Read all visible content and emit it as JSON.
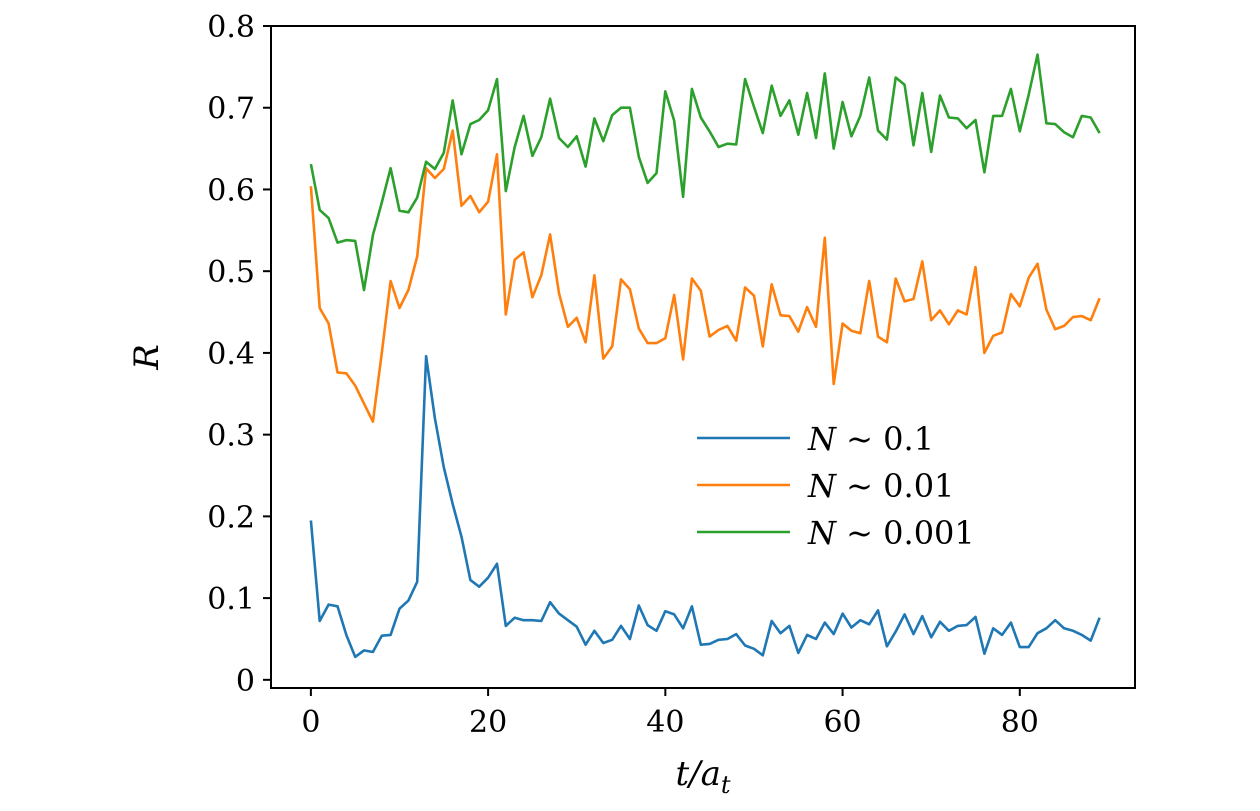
{
  "chart_data": {
    "type": "line",
    "title": "",
    "xlabel": "t/a_t",
    "ylabel": "R",
    "xlim": [
      -4.5,
      93
    ],
    "ylim": [
      -0.01,
      0.8
    ],
    "xticks": [
      0,
      20,
      40,
      60,
      80
    ],
    "yticks": [
      0,
      0.1,
      0.2,
      0.3,
      0.4,
      0.5,
      0.6,
      0.7,
      0.8
    ],
    "ytick_labels": [
      "0",
      "0.1",
      "0.2",
      "0.3",
      "0.4",
      "0.5",
      "0.6",
      "0.7",
      "0.8"
    ],
    "xtick_labels": [
      "0",
      "20",
      "40",
      "60",
      "80"
    ],
    "grid": false,
    "legend_position": "center-right",
    "x": [
      0,
      1,
      2,
      3,
      4,
      5,
      6,
      7,
      8,
      9,
      10,
      11,
      12,
      13,
      14,
      15,
      16,
      17,
      18,
      19,
      20,
      21,
      22,
      23,
      24,
      25,
      26,
      27,
      28,
      29,
      30,
      31,
      32,
      33,
      34,
      35,
      36,
      37,
      38,
      39,
      40,
      41,
      42,
      43,
      44,
      45,
      46,
      47,
      48,
      49,
      50,
      51,
      52,
      53,
      54,
      55,
      56,
      57,
      58,
      59,
      60,
      61,
      62,
      63,
      64,
      65,
      66,
      67,
      68,
      69,
      70,
      71,
      72,
      73,
      74,
      75,
      76,
      77,
      78,
      79,
      80,
      81,
      82,
      83,
      84,
      85,
      86,
      87,
      88,
      89
    ],
    "series": [
      {
        "name": "N ~ 0.1",
        "color": "#1f77b4",
        "values": [
          0.195,
          0.072,
          0.092,
          0.09,
          0.055,
          0.028,
          0.036,
          0.034,
          0.054,
          0.055,
          0.087,
          0.097,
          0.12,
          0.396,
          0.32,
          0.26,
          0.215,
          0.175,
          0.122,
          0.114,
          0.125,
          0.142,
          0.066,
          0.076,
          0.073,
          0.073,
          0.072,
          0.095,
          0.081,
          0.073,
          0.065,
          0.043,
          0.06,
          0.045,
          0.049,
          0.066,
          0.05,
          0.091,
          0.067,
          0.06,
          0.084,
          0.08,
          0.063,
          0.09,
          0.043,
          0.044,
          0.049,
          0.05,
          0.056,
          0.042,
          0.038,
          0.03,
          0.072,
          0.057,
          0.066,
          0.033,
          0.055,
          0.05,
          0.07,
          0.056,
          0.081,
          0.064,
          0.073,
          0.068,
          0.085,
          0.041,
          0.059,
          0.08,
          0.056,
          0.078,
          0.052,
          0.071,
          0.06,
          0.066,
          0.067,
          0.077,
          0.032,
          0.063,
          0.055,
          0.07,
          0.04,
          0.04,
          0.057,
          0.063,
          0.073,
          0.063,
          0.06,
          0.055,
          0.048,
          0.076
        ]
      },
      {
        "name": "N ~ 0.01",
        "color": "#ff7f0e",
        "values": [
          0.604,
          0.455,
          0.436,
          0.376,
          0.375,
          0.36,
          0.338,
          0.316,
          0.4,
          0.488,
          0.455,
          0.477,
          0.518,
          0.626,
          0.614,
          0.625,
          0.672,
          0.58,
          0.592,
          0.572,
          0.585,
          0.643,
          0.447,
          0.514,
          0.523,
          0.468,
          0.495,
          0.545,
          0.473,
          0.432,
          0.443,
          0.413,
          0.495,
          0.393,
          0.408,
          0.49,
          0.478,
          0.43,
          0.412,
          0.412,
          0.418,
          0.471,
          0.392,
          0.491,
          0.476,
          0.42,
          0.428,
          0.433,
          0.415,
          0.48,
          0.47,
          0.408,
          0.484,
          0.446,
          0.445,
          0.426,
          0.456,
          0.432,
          0.541,
          0.362,
          0.436,
          0.427,
          0.424,
          0.488,
          0.42,
          0.413,
          0.491,
          0.463,
          0.466,
          0.512,
          0.44,
          0.452,
          0.435,
          0.452,
          0.447,
          0.505,
          0.4,
          0.421,
          0.425,
          0.472,
          0.457,
          0.492,
          0.509,
          0.453,
          0.429,
          0.433,
          0.444,
          0.445,
          0.44,
          0.467
        ]
      },
      {
        "name": "N ~ 0.001",
        "color": "#2ca02c",
        "values": [
          0.631,
          0.575,
          0.565,
          0.535,
          0.538,
          0.537,
          0.477,
          0.544,
          0.584,
          0.626,
          0.574,
          0.572,
          0.59,
          0.634,
          0.625,
          0.645,
          0.709,
          0.643,
          0.68,
          0.685,
          0.697,
          0.735,
          0.598,
          0.652,
          0.69,
          0.641,
          0.664,
          0.711,
          0.663,
          0.652,
          0.665,
          0.628,
          0.687,
          0.659,
          0.691,
          0.7,
          0.7,
          0.64,
          0.608,
          0.62,
          0.72,
          0.684,
          0.591,
          0.723,
          0.688,
          0.671,
          0.652,
          0.656,
          0.655,
          0.735,
          0.701,
          0.669,
          0.727,
          0.69,
          0.709,
          0.667,
          0.718,
          0.663,
          0.742,
          0.65,
          0.707,
          0.665,
          0.69,
          0.737,
          0.672,
          0.661,
          0.737,
          0.728,
          0.654,
          0.718,
          0.646,
          0.715,
          0.688,
          0.687,
          0.675,
          0.685,
          0.621,
          0.69,
          0.69,
          0.723,
          0.671,
          0.716,
          0.765,
          0.681,
          0.68,
          0.67,
          0.664,
          0.69,
          0.688,
          0.669
        ]
      }
    ]
  }
}
